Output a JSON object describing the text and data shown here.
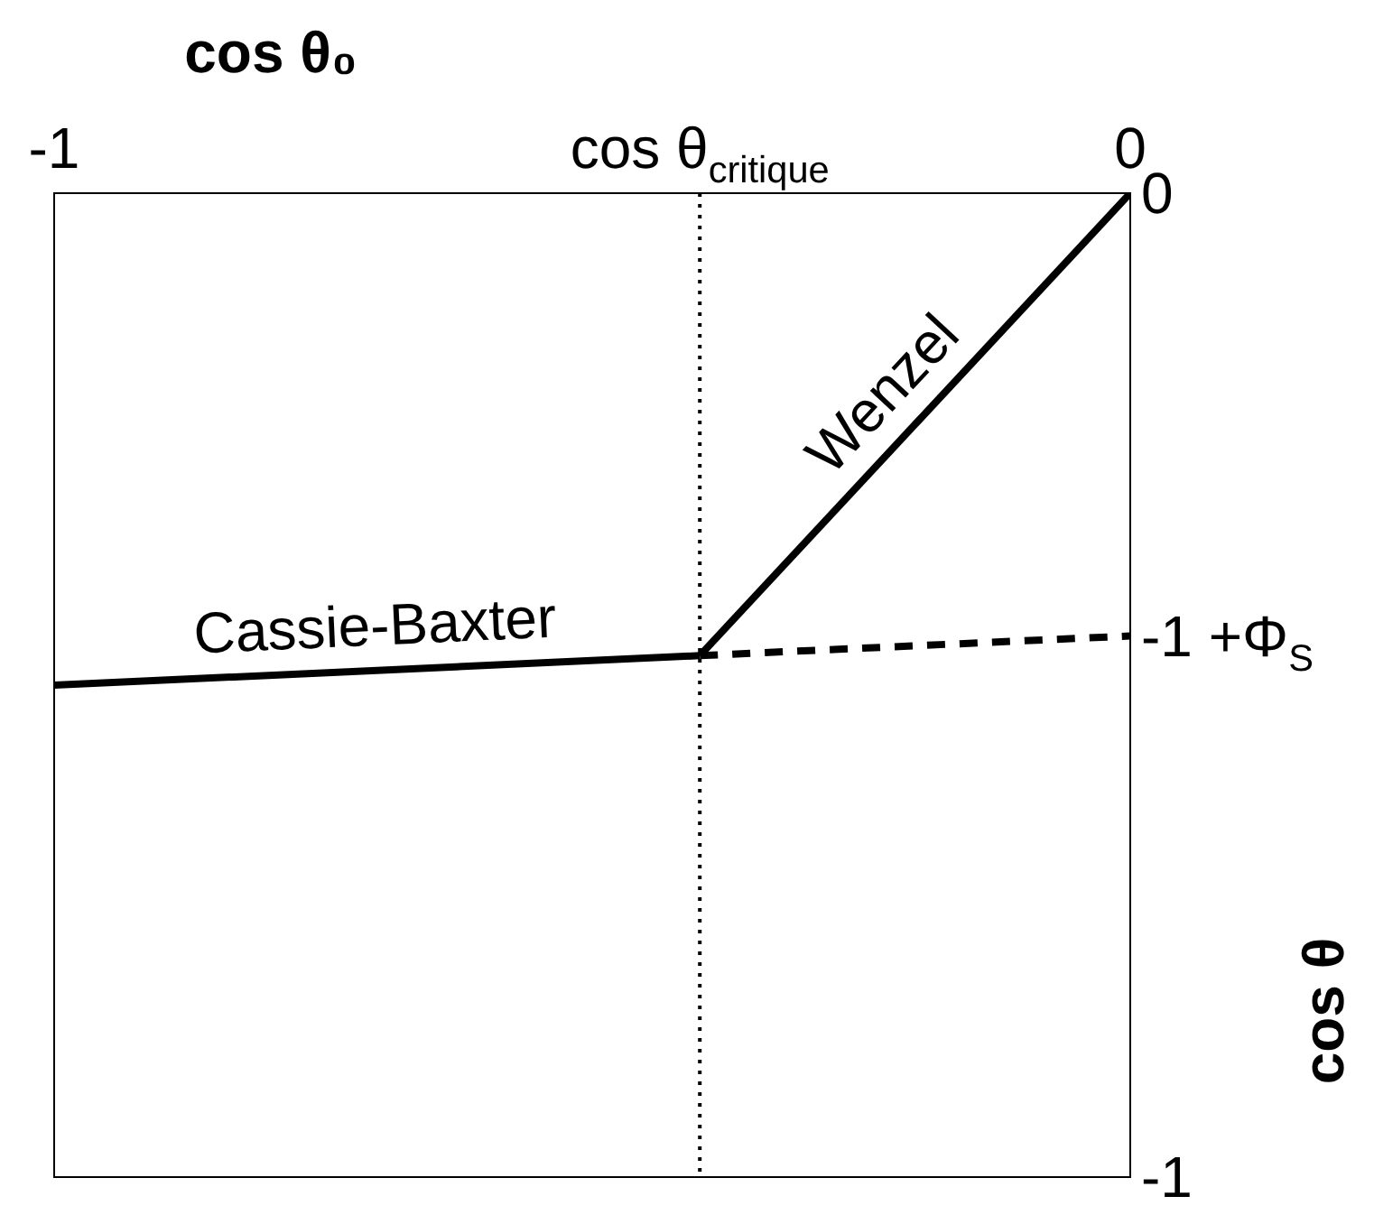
{
  "chart_data": {
    "type": "line",
    "xlabel": "cos θ₀",
    "ylabel": "cos θ",
    "xlim": [
      -1,
      0
    ],
    "ylim": [
      -1,
      0
    ],
    "xticks": [
      -1,
      {
        "value": -0.4,
        "label": "cos θ$_{critique}$"
      },
      0
    ],
    "yticks": [
      -1,
      0
    ],
    "annotations": [
      {
        "text": "-1 +Φ$_{S}$",
        "x": 0,
        "y": -0.45
      }
    ],
    "series": [
      {
        "name": "Cassie-Baxter",
        "color": "#000000",
        "x": [
          -1,
          -0.4
        ],
        "values": [
          -0.5,
          -0.47
        ]
      },
      {
        "name": "Wenzel",
        "color": "#000000",
        "x": [
          -0.4,
          0
        ],
        "values": [
          -0.47,
          0
        ]
      },
      {
        "color": "#000000",
        "x": [
          -0.4,
          0
        ],
        "values": [
          -0.47,
          -0.45
        ],
        "line_style": "dashed"
      }
    ],
    "ref_lines": [
      {
        "axis": "x",
        "value": -0.4,
        "color": "#000000",
        "line_style": "dotted"
      }
    ],
    "grid": false,
    "legend": false,
    "marker": "none",
    "line_style": "solid"
  }
}
